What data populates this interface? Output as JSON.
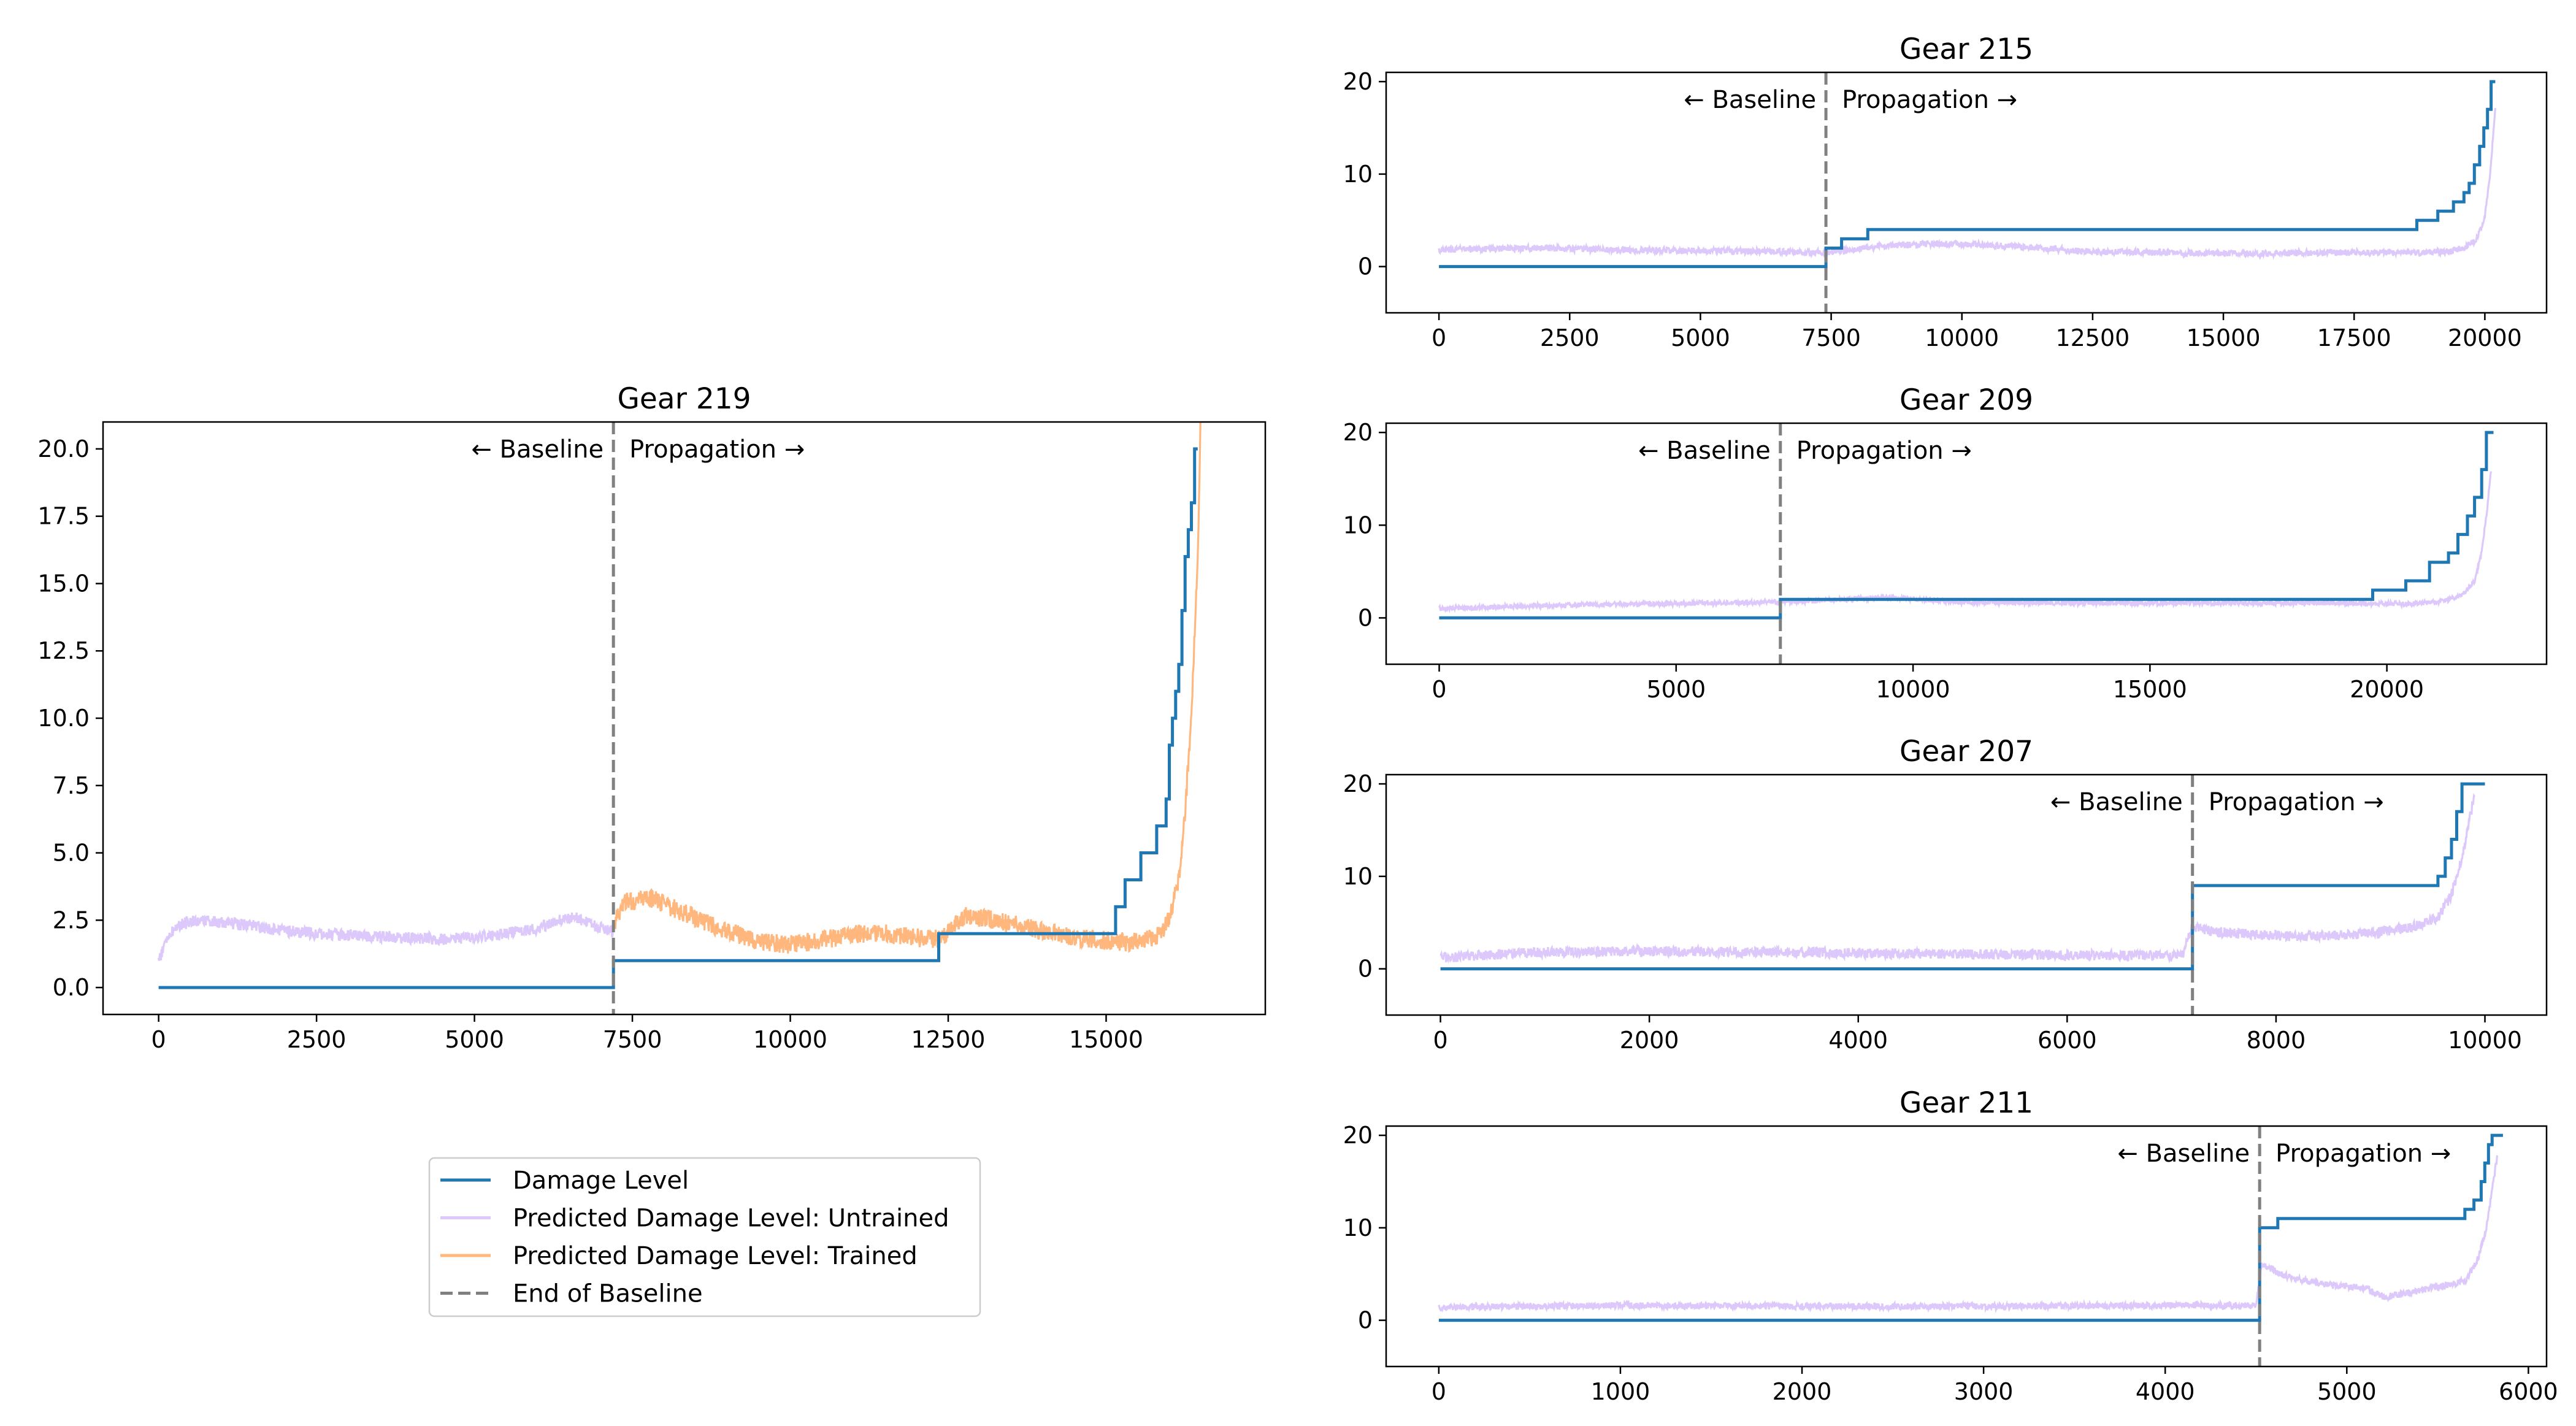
{
  "colors": {
    "damage": "#1f77b4",
    "untrained": "#dcc8fa",
    "trained": "#ffb77e",
    "baseline": "#808080"
  },
  "legend": {
    "items": [
      {
        "label": "Damage Level",
        "style": "solid",
        "color_key": "damage"
      },
      {
        "label": "Predicted Damage Level: Untrained",
        "style": "solid",
        "color_key": "untrained"
      },
      {
        "label": "Predicted Damage Level: Trained",
        "style": "solid",
        "color_key": "trained"
      },
      {
        "label": "End of Baseline",
        "style": "dashed",
        "color_key": "baseline"
      }
    ]
  },
  "chart_data": [
    {
      "type": "line",
      "title": "Gear 219",
      "xlim": [
        -880,
        17520
      ],
      "ylim": [
        -1.0,
        21.0
      ],
      "xticks": [
        0,
        2500,
        5000,
        7500,
        10000,
        12500,
        15000
      ],
      "yticks": [
        0.0,
        2.5,
        5.0,
        7.5,
        10.0,
        12.5,
        15.0,
        17.5,
        20.0
      ],
      "ytick_labels": [
        "0.0",
        "2.5",
        "5.0",
        "7.5",
        "10.0",
        "12.5",
        "15.0",
        "17.5",
        "20.0"
      ],
      "baseline_end": 7200,
      "annotations": {
        "left": "← Baseline",
        "right": "Propagation →"
      },
      "series": [
        {
          "name": "Damage Level",
          "kind": "step",
          "x": [
            0,
            7200,
            7200,
            12350,
            12350,
            15150,
            15150,
            15300,
            15300,
            15550,
            15550,
            15800,
            15800,
            15950,
            15950,
            16000,
            16000,
            16050,
            16050,
            16100,
            16100,
            16150,
            16150,
            16200,
            16200,
            16250,
            16250,
            16300,
            16300,
            16350,
            16350,
            16400,
            16400,
            16450
          ],
          "y": [
            0,
            0,
            1,
            1,
            2,
            2,
            3,
            3,
            4,
            4,
            5,
            5,
            6,
            6,
            7,
            7,
            9,
            9,
            10,
            10,
            11,
            11,
            12,
            12,
            14,
            14,
            16,
            16,
            17,
            17,
            18,
            18,
            20,
            20
          ]
        },
        {
          "name": "Predicted Damage Level: Untrained",
          "kind": "noisy",
          "x": [
            0,
            150,
            300,
            600,
            1000,
            1500,
            2000,
            2500,
            3000,
            3500,
            4000,
            4500,
            5000,
            5500,
            6000,
            6300,
            6600,
            6900,
            7200
          ],
          "y": [
            1.0,
            1.9,
            2.3,
            2.5,
            2.4,
            2.3,
            2.1,
            2.0,
            1.95,
            1.9,
            1.85,
            1.8,
            1.85,
            2.0,
            2.2,
            2.5,
            2.6,
            2.3,
            2.1
          ],
          "noise": 0.22
        },
        {
          "name": "Predicted Damage Level: Trained",
          "kind": "noisy",
          "x": [
            7200,
            7400,
            7800,
            8200,
            8600,
            9000,
            9500,
            10000,
            10500,
            11000,
            11500,
            12000,
            12400,
            12600,
            12800,
            13200,
            13800,
            14400,
            14800,
            15200,
            15500,
            15800,
            16000,
            16150,
            16250,
            16350,
            16450,
            16500
          ],
          "y": [
            2.3,
            3.2,
            3.3,
            2.9,
            2.5,
            2.1,
            1.7,
            1.6,
            1.75,
            2.0,
            2.0,
            1.85,
            1.8,
            2.4,
            2.7,
            2.5,
            2.2,
            1.9,
            1.8,
            1.7,
            1.7,
            1.9,
            2.5,
            4.0,
            6.5,
            10.0,
            16.0,
            21.5
          ],
          "noise": 0.35
        }
      ]
    },
    {
      "type": "line",
      "title": "Gear 215",
      "xlim": [
        -1010,
        21180
      ],
      "ylim": [
        -5.0,
        21.0
      ],
      "xticks": [
        0,
        2500,
        5000,
        7500,
        10000,
        12500,
        15000,
        17500,
        20000
      ],
      "yticks": [
        0,
        10,
        20
      ],
      "ytick_labels": [
        "0",
        "10",
        "20"
      ],
      "baseline_end": 7400,
      "annotations": {
        "left": "← Baseline",
        "right": "Propagation →"
      },
      "series": [
        {
          "name": "Damage Level",
          "kind": "step",
          "x": [
            0,
            7400,
            7400,
            7700,
            7700,
            8200,
            8200,
            18700,
            18700,
            19100,
            19100,
            19400,
            19400,
            19600,
            19600,
            19700,
            19700,
            19800,
            19800,
            19900,
            19900,
            19980,
            19980,
            20050,
            20050,
            20120,
            20120,
            20200
          ],
          "y": [
            0,
            0,
            2,
            2,
            3,
            3,
            4,
            4,
            5,
            5,
            6,
            6,
            7,
            7,
            8,
            8,
            9,
            9,
            11,
            11,
            13,
            13,
            15,
            15,
            17,
            17,
            20,
            20
          ]
        },
        {
          "name": "Predicted Damage Level: Untrained",
          "kind": "noisy",
          "x": [
            0,
            2000,
            3500,
            5000,
            6500,
            7400,
            8500,
            9500,
            10500,
            11500,
            12500,
            14000,
            15500,
            17000,
            18500,
            19200,
            19600,
            19850,
            20000,
            20100,
            20200
          ],
          "y": [
            1.8,
            2.0,
            1.8,
            1.7,
            1.6,
            1.5,
            2.2,
            2.5,
            2.3,
            2.0,
            1.6,
            1.5,
            1.4,
            1.5,
            1.5,
            1.6,
            2.0,
            3.0,
            5.5,
            10.0,
            17.0
          ],
          "noise": 0.35
        }
      ]
    },
    {
      "type": "line",
      "title": "Gear 209",
      "xlim": [
        -1120,
        23370
      ],
      "ylim": [
        -5.0,
        21.0
      ],
      "xticks": [
        0,
        5000,
        10000,
        15000,
        20000
      ],
      "yticks": [
        0,
        10,
        20
      ],
      "ytick_labels": [
        "0",
        "10",
        "20"
      ],
      "baseline_end": 7200,
      "annotations": {
        "left": "← Baseline",
        "right": "Propagation →"
      },
      "series": [
        {
          "name": "Damage Level",
          "kind": "step",
          "x": [
            0,
            7200,
            7200,
            19700,
            19700,
            20400,
            20400,
            20900,
            20900,
            21300,
            21300,
            21500,
            21500,
            21700,
            21700,
            21850,
            21850,
            22000,
            22000,
            22100,
            22100,
            22200,
            22200,
            22250
          ],
          "y": [
            0,
            0,
            2,
            2,
            3,
            3,
            4,
            4,
            6,
            6,
            7,
            7,
            9,
            9,
            11,
            11,
            13,
            13,
            16,
            16,
            20,
            20,
            20,
            20
          ]
        },
        {
          "name": "Predicted Damage Level: Untrained",
          "kind": "noisy",
          "x": [
            0,
            2000,
            4000,
            6000,
            7200,
            8500,
            9500,
            11000,
            13000,
            15000,
            17000,
            19000,
            20500,
            21200,
            21600,
            21850,
            22000,
            22100,
            22200
          ],
          "y": [
            1.0,
            1.3,
            1.5,
            1.6,
            1.7,
            2.0,
            2.2,
            1.7,
            1.6,
            1.6,
            1.6,
            1.6,
            1.5,
            1.8,
            2.5,
            4.0,
            7.0,
            11.0,
            16.0
          ],
          "noise": 0.25
        }
      ]
    },
    {
      "type": "line",
      "title": "Gear 207",
      "xlim": [
        -520,
        10590
      ],
      "ylim": [
        -5.0,
        21.0
      ],
      "xticks": [
        0,
        2000,
        4000,
        6000,
        8000,
        10000
      ],
      "yticks": [
        0,
        10,
        20
      ],
      "ytick_labels": [
        "0",
        "10",
        "20"
      ],
      "baseline_end": 7200,
      "annotations": {
        "left": "← Baseline",
        "right": "Propagation →"
      },
      "series": [
        {
          "name": "Damage Level",
          "kind": "step",
          "x": [
            0,
            7200,
            7200,
            9550,
            9550,
            9620,
            9620,
            9680,
            9680,
            9730,
            9730,
            9780,
            9780,
            9830,
            9830,
            10000
          ],
          "y": [
            0,
            0,
            9,
            9,
            10,
            10,
            12,
            12,
            14,
            14,
            17,
            17,
            20,
            20,
            20,
            20
          ]
        },
        {
          "name": "Predicted Damage Level: Untrained",
          "kind": "noisy",
          "x": [
            0,
            1000,
            2000,
            3000,
            4000,
            5000,
            6000,
            7100,
            7200,
            7400,
            7800,
            8200,
            8600,
            9000,
            9300,
            9550,
            9680,
            9780,
            9850,
            9900
          ],
          "y": [
            1.2,
            1.8,
            1.9,
            1.8,
            1.7,
            1.6,
            1.5,
            1.4,
            4.5,
            4.0,
            3.7,
            3.5,
            3.6,
            4.0,
            4.5,
            5.5,
            8.0,
            12.0,
            16.0,
            19.0
          ],
          "noise": 0.55
        }
      ]
    },
    {
      "type": "line",
      "title": "Gear 211",
      "xlim": [
        -290,
        6100
      ],
      "ylim": [
        -5.0,
        21.0
      ],
      "xticks": [
        0,
        1000,
        2000,
        3000,
        4000,
        5000,
        6000
      ],
      "yticks": [
        0,
        10,
        20
      ],
      "ytick_labels": [
        "0",
        "10",
        "20"
      ],
      "baseline_end": 4520,
      "annotations": {
        "left": "← Baseline",
        "right": "Propagation →"
      },
      "series": [
        {
          "name": "Damage Level",
          "kind": "step",
          "x": [
            0,
            4520,
            4520,
            4620,
            4620,
            5650,
            5650,
            5700,
            5700,
            5740,
            5740,
            5760,
            5760,
            5780,
            5780,
            5800,
            5800,
            5820,
            5820,
            5860
          ],
          "y": [
            0,
            0,
            10,
            10,
            11,
            11,
            12,
            12,
            13,
            13,
            15,
            15,
            17,
            17,
            19,
            19,
            20,
            20,
            20,
            20
          ]
        },
        {
          "name": "Predicted Damage Level: Untrained",
          "kind": "noisy",
          "x": [
            0,
            1000,
            2000,
            3000,
            4000,
            4500,
            4530,
            4700,
            4900,
            5100,
            5200,
            5350,
            5500,
            5650,
            5720,
            5770,
            5800,
            5830
          ],
          "y": [
            1.4,
            1.6,
            1.5,
            1.5,
            1.6,
            1.6,
            6.0,
            4.5,
            3.8,
            3.5,
            2.5,
            3.0,
            3.6,
            4.2,
            6.5,
            10.0,
            14.0,
            18.0
          ],
          "noise": 0.35
        }
      ]
    }
  ]
}
